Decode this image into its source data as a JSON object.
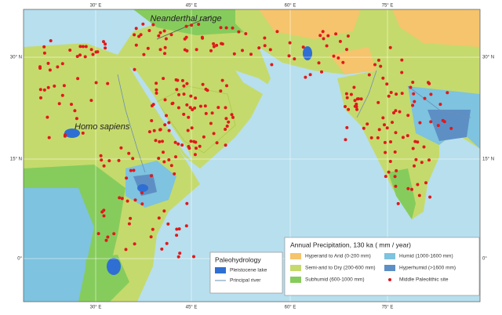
{
  "map": {
    "graticule": {
      "longitudes": [
        "30° E",
        "45° E",
        "60° E",
        "75° E"
      ],
      "latitudes": [
        "30° N",
        "15° N",
        "0°"
      ]
    },
    "annotations": [
      "Neanderthal range",
      "Homo sapiens"
    ],
    "paleohydrology_legend": {
      "title": "Paleohydrology",
      "items": [
        "Pleistocene lake",
        "Principal river"
      ]
    },
    "precipitation_legend": {
      "title": "Annual Precipitation, 130 ka ( mm / year)",
      "items": [
        "Hyperarid to Arid (0-200 mm)",
        "Semi-arid to Dry (200-600 mm)",
        "Subhumid (600-1000 mm)",
        "Humid (1000-1600 mm)",
        "Hyperhumid (>1600 mm)",
        "Middle Paleolithic site"
      ]
    }
  }
}
